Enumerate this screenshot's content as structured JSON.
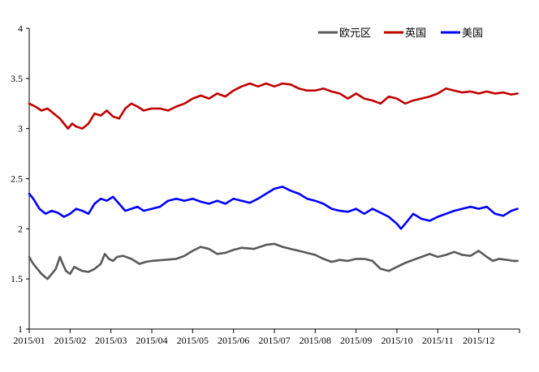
{
  "chart_data": {
    "type": "line",
    "title": "",
    "xlabel": "",
    "ylabel": "",
    "ylim": [
      1,
      4
    ],
    "yticks": [
      "1",
      "1.5",
      "2",
      "2.5",
      "3",
      "3.5",
      "4"
    ],
    "xtick_labels": [
      "2015/01",
      "2015/02",
      "2015/03",
      "2015/04",
      "2015/05",
      "2015/06",
      "2015/07",
      "2015/08",
      "2015/09",
      "2015/10",
      "2015/11",
      "2015/12"
    ],
    "xtick_month_index": [
      0,
      1,
      2,
      3,
      4,
      5,
      6,
      7,
      8,
      9,
      10,
      11
    ],
    "xlim_months": [
      0,
      12
    ],
    "grid": false,
    "legend_position": "top-right",
    "series": [
      {
        "name": "欧元区",
        "color": "#595959",
        "x": [
          0,
          0.1,
          0.3,
          0.45,
          0.55,
          0.65,
          0.75,
          0.82,
          0.9,
          1.0,
          1.1,
          1.2,
          1.3,
          1.45,
          1.6,
          1.75,
          1.85,
          1.95,
          2.05,
          2.15,
          2.3,
          2.5,
          2.7,
          2.85,
          3.0,
          3.3,
          3.6,
          3.8,
          4.0,
          4.2,
          4.4,
          4.6,
          4.8,
          5.0,
          5.2,
          5.5,
          5.8,
          6.0,
          6.2,
          6.4,
          6.6,
          6.8,
          7.0,
          7.2,
          7.4,
          7.6,
          7.8,
          8.0,
          8.2,
          8.4,
          8.6,
          8.8,
          9.0,
          9.2,
          9.4,
          9.6,
          9.8,
          10.0,
          10.2,
          10.4,
          10.6,
          10.8,
          11.0,
          11.2,
          11.35,
          11.5,
          11.7,
          11.85,
          11.95
        ],
        "values": [
          1.72,
          1.65,
          1.55,
          1.5,
          1.55,
          1.6,
          1.72,
          1.65,
          1.58,
          1.55,
          1.62,
          1.6,
          1.58,
          1.57,
          1.6,
          1.65,
          1.75,
          1.7,
          1.68,
          1.72,
          1.73,
          1.7,
          1.65,
          1.67,
          1.68,
          1.69,
          1.7,
          1.73,
          1.78,
          1.82,
          1.8,
          1.75,
          1.76,
          1.79,
          1.81,
          1.8,
          1.84,
          1.85,
          1.82,
          1.8,
          1.78,
          1.76,
          1.74,
          1.7,
          1.67,
          1.69,
          1.68,
          1.7,
          1.7,
          1.68,
          1.6,
          1.58,
          1.62,
          1.66,
          1.69,
          1.72,
          1.75,
          1.72,
          1.74,
          1.77,
          1.74,
          1.73,
          1.78,
          1.72,
          1.68,
          1.7,
          1.69,
          1.68,
          1.68
        ]
      },
      {
        "name": "英国",
        "color": "#c00000",
        "x": [
          0,
          0.15,
          0.3,
          0.45,
          0.6,
          0.75,
          0.85,
          0.95,
          1.05,
          1.15,
          1.3,
          1.45,
          1.6,
          1.75,
          1.9,
          2.05,
          2.2,
          2.35,
          2.5,
          2.65,
          2.8,
          3.0,
          3.2,
          3.4,
          3.6,
          3.8,
          4.0,
          4.2,
          4.4,
          4.6,
          4.8,
          5.0,
          5.2,
          5.4,
          5.6,
          5.8,
          6.0,
          6.2,
          6.4,
          6.6,
          6.8,
          7.0,
          7.2,
          7.4,
          7.6,
          7.8,
          8.0,
          8.2,
          8.4,
          8.6,
          8.8,
          9.0,
          9.2,
          9.4,
          9.6,
          9.8,
          10.0,
          10.2,
          10.4,
          10.6,
          10.8,
          11.0,
          11.2,
          11.4,
          11.6,
          11.8,
          11.95
        ],
        "values": [
          3.25,
          3.22,
          3.18,
          3.2,
          3.15,
          3.1,
          3.05,
          3.0,
          3.05,
          3.02,
          3.0,
          3.05,
          3.15,
          3.13,
          3.18,
          3.12,
          3.1,
          3.2,
          3.25,
          3.22,
          3.18,
          3.2,
          3.2,
          3.18,
          3.22,
          3.25,
          3.3,
          3.33,
          3.3,
          3.35,
          3.32,
          3.38,
          3.42,
          3.45,
          3.42,
          3.45,
          3.42,
          3.45,
          3.44,
          3.4,
          3.38,
          3.38,
          3.4,
          3.37,
          3.35,
          3.3,
          3.35,
          3.3,
          3.28,
          3.25,
          3.32,
          3.3,
          3.25,
          3.28,
          3.3,
          3.32,
          3.35,
          3.4,
          3.38,
          3.36,
          3.37,
          3.35,
          3.37,
          3.35,
          3.36,
          3.34,
          3.35
        ]
      },
      {
        "name": "美国",
        "color": "#0000ff",
        "x": [
          0,
          0.1,
          0.25,
          0.4,
          0.55,
          0.7,
          0.85,
          1.0,
          1.15,
          1.3,
          1.45,
          1.6,
          1.75,
          1.9,
          2.05,
          2.2,
          2.35,
          2.5,
          2.65,
          2.8,
          3.0,
          3.2,
          3.4,
          3.6,
          3.8,
          4.0,
          4.2,
          4.4,
          4.6,
          4.8,
          5.0,
          5.2,
          5.4,
          5.6,
          5.8,
          6.0,
          6.2,
          6.4,
          6.6,
          6.8,
          7.0,
          7.2,
          7.4,
          7.6,
          7.8,
          8.0,
          8.2,
          8.4,
          8.6,
          8.8,
          9.0,
          9.1,
          9.2,
          9.4,
          9.6,
          9.8,
          10.0,
          10.2,
          10.4,
          10.6,
          10.8,
          11.0,
          11.2,
          11.4,
          11.6,
          11.8,
          11.95
        ],
        "values": [
          2.35,
          2.3,
          2.2,
          2.15,
          2.18,
          2.16,
          2.12,
          2.15,
          2.2,
          2.18,
          2.15,
          2.25,
          2.3,
          2.28,
          2.32,
          2.25,
          2.18,
          2.2,
          2.22,
          2.18,
          2.2,
          2.22,
          2.28,
          2.3,
          2.28,
          2.3,
          2.27,
          2.25,
          2.28,
          2.25,
          2.3,
          2.28,
          2.26,
          2.3,
          2.35,
          2.4,
          2.42,
          2.38,
          2.35,
          2.3,
          2.28,
          2.25,
          2.2,
          2.18,
          2.17,
          2.2,
          2.15,
          2.2,
          2.16,
          2.12,
          2.05,
          2.0,
          2.05,
          2.15,
          2.1,
          2.08,
          2.12,
          2.15,
          2.18,
          2.2,
          2.22,
          2.2,
          2.22,
          2.15,
          2.13,
          2.18,
          2.2
        ]
      }
    ]
  }
}
